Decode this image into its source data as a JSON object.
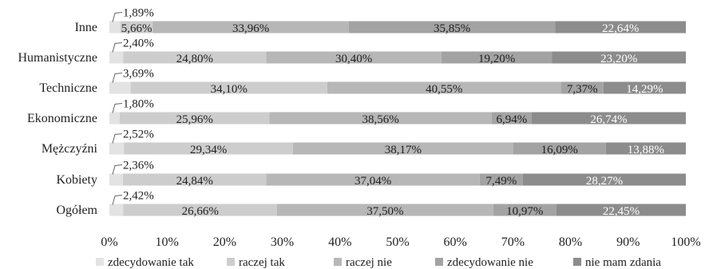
{
  "chart_data": {
    "type": "bar",
    "orientation": "horizontal",
    "stacked": true,
    "categories": [
      "Inne",
      "Humanistyczne",
      "Techniczne",
      "Ekonomiczne",
      "Mężczyźni",
      "Kobiety",
      "Ogółem"
    ],
    "series": [
      {
        "name": "zdecydowanie tak",
        "color": "#e3e3e3",
        "values": [
          1.89,
          2.4,
          3.69,
          1.8,
          2.52,
          2.36,
          2.42
        ],
        "labels": [
          "1,89%",
          "2,40%",
          "3,69%",
          "1,80%",
          "2,52%",
          "2,36%",
          "2,42%"
        ]
      },
      {
        "name": "raczej tak",
        "color": "#cdcdcd",
        "values": [
          5.66,
          24.8,
          34.1,
          25.96,
          29.34,
          24.84,
          26.66
        ],
        "labels": [
          "5,66%",
          "24,80%",
          "34,10%",
          "25,96%",
          "29,34%",
          "24,84%",
          "26,66%"
        ]
      },
      {
        "name": "raczej nie",
        "color": "#b7b7b7",
        "values": [
          33.96,
          30.4,
          40.55,
          38.56,
          38.17,
          37.04,
          37.5
        ],
        "labels": [
          "33,96%",
          "30,40%",
          "40,55%",
          "38,56%",
          "38,17%",
          "37,04%",
          "37,50%"
        ]
      },
      {
        "name": "zdecydowanie nie",
        "color": "#a3a3a3",
        "values": [
          35.85,
          19.2,
          7.37,
          6.94,
          16.09,
          7.49,
          10.97
        ],
        "labels": [
          "35,85%",
          "19,20%",
          "7,37%",
          "6,94%",
          "16,09%",
          "7,49%",
          "10,97%"
        ]
      },
      {
        "name": "nie mam zdania",
        "color": "#8c8c8c",
        "values": [
          22.64,
          23.2,
          14.29,
          26.74,
          13.88,
          28.27,
          22.45
        ],
        "labels": [
          "22,64%",
          "23,20%",
          "14,29%",
          "26,74%",
          "13,88%",
          "28,27%",
          "22,45%"
        ]
      }
    ],
    "xlim": [
      0,
      100
    ],
    "xticks": [
      "0%",
      "10%",
      "20%",
      "30%",
      "40%",
      "50%",
      "60%",
      "70%",
      "80%",
      "90%",
      "100%"
    ],
    "grid": false,
    "legend": "bottom"
  }
}
